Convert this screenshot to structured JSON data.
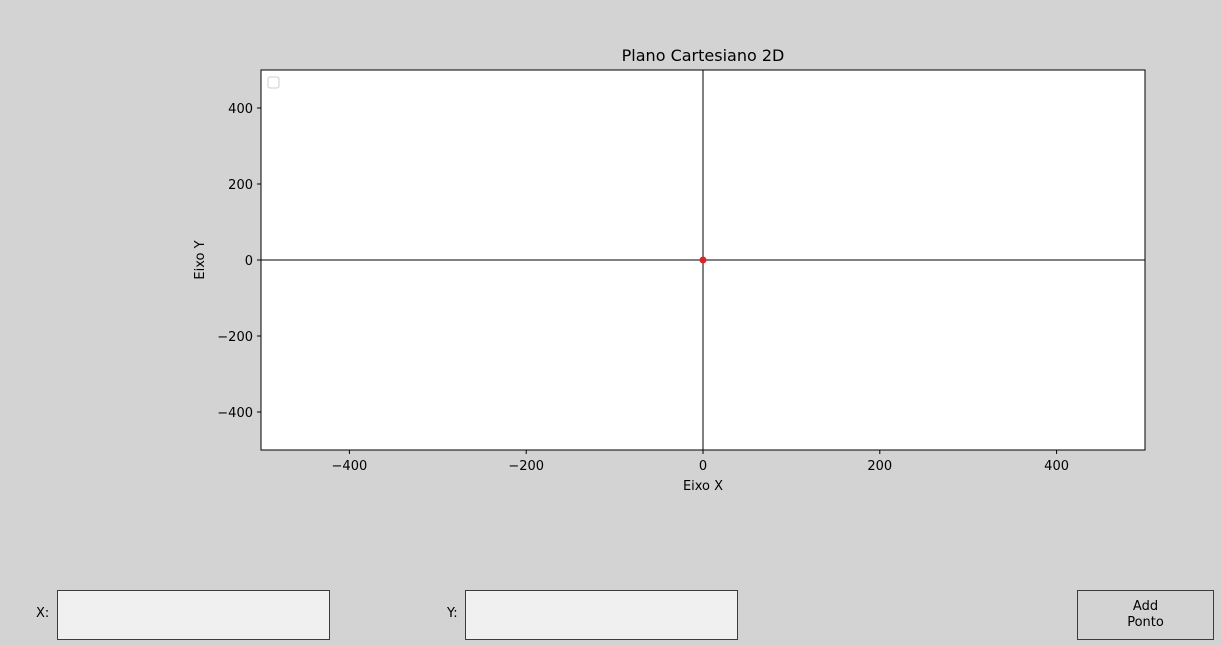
{
  "chart_data": {
    "type": "scatter",
    "title": "Plano Cartesiano 2D",
    "xlabel": "Eixo X",
    "ylabel": "Eixo Y",
    "xlim": [
      -500,
      500
    ],
    "ylim": [
      -500,
      500
    ],
    "xticks": [
      -400,
      -200,
      0,
      200,
      400
    ],
    "yticks": [
      -400,
      -200,
      0,
      200,
      400
    ],
    "xtick_labels": [
      "−400",
      "−200",
      "0",
      "200",
      "400"
    ],
    "ytick_labels": [
      "−400",
      "−200",
      "0",
      "200",
      "400"
    ],
    "grid": false,
    "axis_lines": {
      "x": 0,
      "y": 0
    },
    "legend": "top-left (empty)",
    "series": [
      {
        "x": [
          0
        ],
        "y": [
          0
        ],
        "color": "#d62728"
      }
    ]
  },
  "controls": {
    "x_label": "X:",
    "x_value": "",
    "y_label": "Y:",
    "y_value": "",
    "add_button_label": "Add\nPonto"
  },
  "colors": {
    "background": "#d3d3d3",
    "plot_background": "#ffffff",
    "point": "#d62728"
  }
}
